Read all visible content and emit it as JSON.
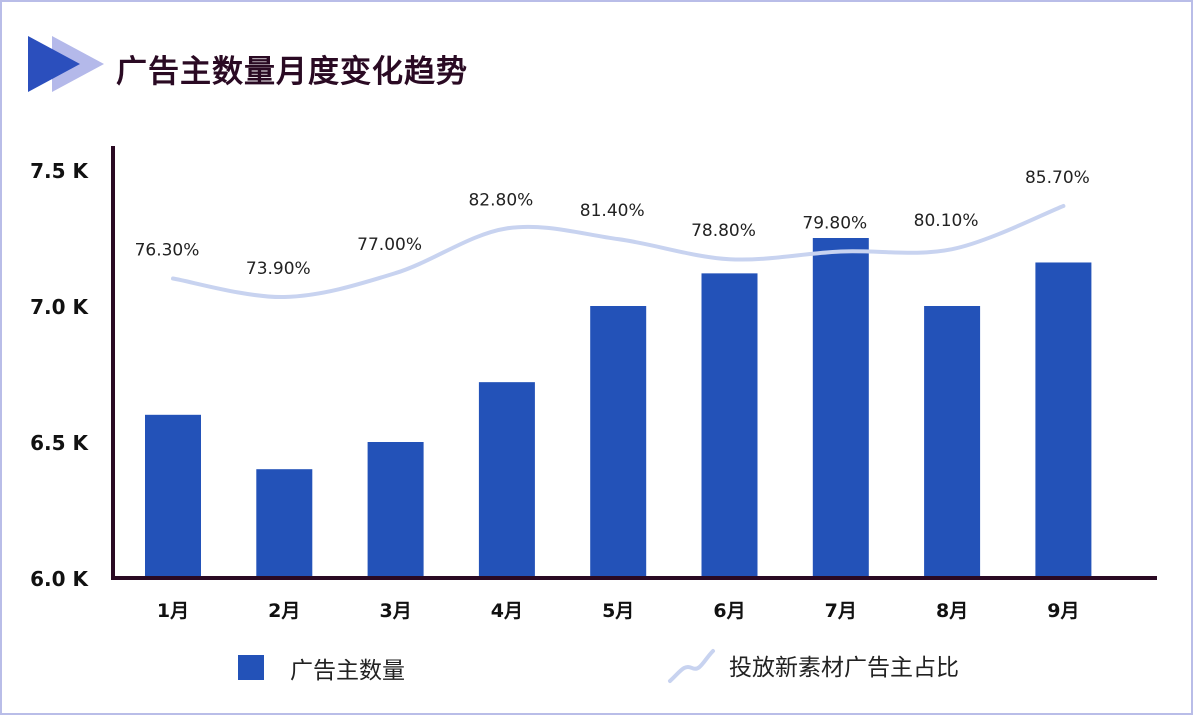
{
  "title": "广告主数量月度变化趋势",
  "colors": {
    "bar": "#2352b8",
    "line": "#c8d3f0",
    "axis": "#2a0a23",
    "title_icon_dark": "#2b4fbd",
    "title_icon_light": "#b4b9ea",
    "border": "#b9bde8"
  },
  "chart_data": {
    "type": "bar",
    "title": "广告主数量月度变化趋势",
    "categories": [
      "1月",
      "2月",
      "3月",
      "4月",
      "5月",
      "6月",
      "7月",
      "8月",
      "9月"
    ],
    "ylim": [
      6.0,
      7.5
    ],
    "yticks": [
      6.0,
      6.5,
      7.0,
      7.5
    ],
    "ytick_labels": [
      "6.0 K",
      "6.5 K",
      "7.0 K",
      "7.5 K"
    ],
    "series": [
      {
        "name": "广告主数量",
        "type": "bar",
        "unit": "K",
        "values": [
          6.6,
          6.4,
          6.5,
          6.72,
          7.0,
          7.12,
          7.25,
          7.0,
          7.16
        ]
      },
      {
        "name": "投放新素材广告主占比",
        "type": "line",
        "unit": "%",
        "values": [
          76.3,
          73.9,
          77.0,
          82.8,
          81.4,
          78.8,
          79.8,
          80.1,
          85.7
        ],
        "labels": [
          "76.30%",
          "73.90%",
          "77.00%",
          "82.80%",
          "81.40%",
          "78.80%",
          "79.80%",
          "80.10%",
          "85.70%"
        ]
      }
    ],
    "legend": [
      {
        "label": "广告主数量",
        "kind": "bar"
      },
      {
        "label": "投放新素材广告主占比",
        "kind": "line"
      }
    ]
  }
}
